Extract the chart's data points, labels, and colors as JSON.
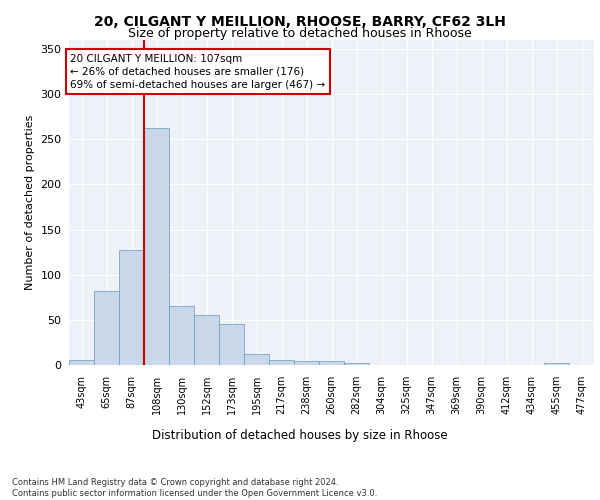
{
  "title1": "20, CILGANT Y MEILLION, RHOOSE, BARRY, CF62 3LH",
  "title2": "Size of property relative to detached houses in Rhoose",
  "xlabel": "Distribution of detached houses by size in Rhoose",
  "ylabel": "Number of detached properties",
  "bins": [
    "43sqm",
    "65sqm",
    "87sqm",
    "108sqm",
    "130sqm",
    "152sqm",
    "173sqm",
    "195sqm",
    "217sqm",
    "238sqm",
    "260sqm",
    "282sqm",
    "304sqm",
    "325sqm",
    "347sqm",
    "369sqm",
    "390sqm",
    "412sqm",
    "434sqm",
    "455sqm",
    "477sqm"
  ],
  "values": [
    5,
    82,
    127,
    263,
    65,
    55,
    45,
    12,
    6,
    4,
    4,
    2,
    0,
    0,
    0,
    0,
    0,
    0,
    0,
    2,
    0
  ],
  "bar_color": "#c8d8e8",
  "bar_edge_color": "#6699bb",
  "highlight_bin_index": 3,
  "highlight_color": "#cc0000",
  "annotation_text": "20 CILGANT Y MEILLION: 107sqm\n← 26% of detached houses are smaller (176)\n69% of semi-detached houses are larger (467) →",
  "annotation_box_color": "#ffffff",
  "annotation_box_edge_color": "#cc0000",
  "ylim": [
    0,
    360
  ],
  "yticks": [
    0,
    50,
    100,
    150,
    200,
    250,
    300,
    350
  ],
  "footer_text": "Contains HM Land Registry data © Crown copyright and database right 2024.\nContains public sector information licensed under the Open Government Licence v3.0.",
  "bg_color": "#ffffff",
  "plot_bg_color": "#eef2f8",
  "grid_color": "#ffffff"
}
